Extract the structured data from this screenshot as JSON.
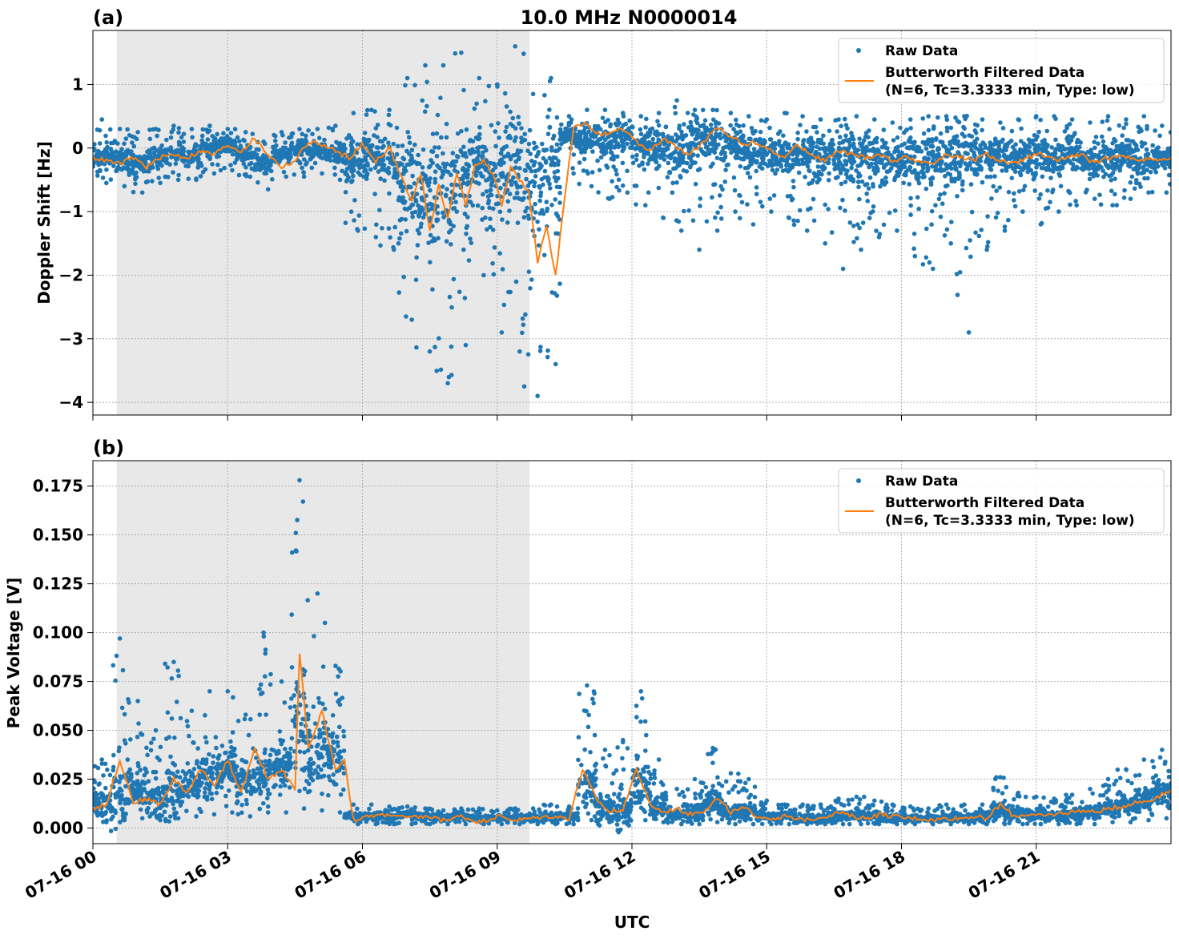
{
  "figure": {
    "title": "10.0 MHz N0000014",
    "xlabel": "UTC"
  },
  "colors": {
    "raw": "#1f77b4",
    "filtered": "#ff7f0e",
    "shade": "#e8e8e8",
    "grid": "#b0b0b0"
  },
  "chart_data": [
    {
      "type": "scatter",
      "panel_label": "(a)",
      "title": "10.0 MHz N0000014",
      "ylabel": "Doppler Shift [Hz]",
      "xlabel": "",
      "x_unit": "hours since 07-16 00 UTC",
      "xlim": [
        0,
        24
      ],
      "ylim": [
        -4.2,
        1.85
      ],
      "xticks": [
        0,
        3,
        6,
        9,
        12,
        15,
        18,
        21
      ],
      "yticks": [
        1,
        0,
        -1,
        -2,
        -3,
        -4
      ],
      "ytick_labels": [
        "1",
        "0",
        "−1",
        "−2",
        "−3",
        "−4"
      ],
      "grid": true,
      "legend_position": "top-right",
      "shaded_region": [
        0.53,
        9.72
      ],
      "series": [
        {
          "name": "Raw Data",
          "style": "dots",
          "x": [
            0.2,
            0.6,
            1.0,
            1.4,
            1.8,
            2.2,
            2.6,
            3.0,
            3.4,
            3.8,
            4.2,
            4.6,
            5.0,
            5.4,
            5.8,
            6.2,
            6.6,
            7.0,
            7.4,
            7.8,
            8.2,
            8.6,
            9.0,
            9.4,
            9.8,
            10.2,
            10.6,
            11.0,
            11.4,
            11.8,
            12.2,
            12.6,
            13.0,
            13.4,
            13.8,
            14.2,
            14.6,
            15.0,
            15.4,
            15.8,
            16.2,
            16.6,
            17.0,
            17.4,
            17.8,
            18.2,
            18.6,
            19.0,
            19.4,
            19.8,
            20.2,
            20.6,
            21.0,
            21.4,
            21.8,
            22.2,
            22.6,
            23.0,
            23.4,
            23.8
          ],
          "y_center": [
            -0.15,
            -0.2,
            -0.25,
            -0.15,
            -0.1,
            -0.15,
            0.0,
            0.05,
            -0.1,
            -0.25,
            -0.1,
            0.0,
            -0.05,
            -0.1,
            -0.2,
            -0.1,
            -0.3,
            -0.5,
            -0.8,
            -0.6,
            -0.5,
            -0.2,
            -0.4,
            -0.3,
            -0.6,
            -0.3,
            0.2,
            0.15,
            0.1,
            0.2,
            0.05,
            0.0,
            -0.05,
            0.05,
            0.1,
            0.05,
            -0.05,
            -0.1,
            -0.1,
            -0.1,
            -0.15,
            -0.1,
            -0.15,
            -0.1,
            -0.2,
            -0.15,
            -0.2,
            -0.15,
            -0.1,
            -0.1,
            -0.15,
            -0.15,
            -0.1,
            -0.15,
            -0.1,
            -0.2,
            -0.15,
            -0.1,
            -0.2,
            -0.15
          ],
          "y_min": [
            -0.55,
            -0.6,
            -0.7,
            -0.55,
            -0.5,
            -0.5,
            -0.4,
            -0.35,
            -0.45,
            -0.65,
            -0.45,
            -0.45,
            -0.4,
            -0.5,
            -1.3,
            -1.4,
            -1.6,
            -2.7,
            -3.2,
            -3.7,
            -3.1,
            -2.0,
            -2.9,
            -3.2,
            -3.9,
            -3.4,
            -0.4,
            -0.6,
            -0.8,
            -0.7,
            -0.9,
            -1.1,
            -1.3,
            -1.6,
            -1.3,
            -1.0,
            -1.2,
            -1.0,
            -1.1,
            -1.3,
            -1.5,
            -1.9,
            -1.6,
            -1.4,
            -1.3,
            -1.7,
            -1.9,
            -1.5,
            -2.9,
            -1.6,
            -1.3,
            -1.0,
            -1.2,
            -1.0,
            -0.9,
            -0.8,
            -0.9,
            -0.8,
            -0.7,
            -0.7
          ],
          "y_max": [
            0.45,
            0.3,
            0.25,
            0.3,
            0.35,
            0.3,
            0.35,
            0.3,
            0.25,
            0.1,
            0.25,
            0.3,
            0.3,
            0.35,
            0.55,
            0.6,
            0.6,
            1.1,
            1.3,
            1.3,
            1.5,
            1.1,
            1.0,
            1.6,
            0.85,
            1.1,
            0.5,
            0.6,
            0.6,
            0.55,
            0.5,
            0.55,
            0.75,
            0.6,
            0.6,
            0.55,
            0.5,
            0.45,
            0.55,
            0.5,
            0.45,
            0.45,
            0.5,
            0.45,
            0.4,
            0.45,
            0.5,
            0.5,
            0.5,
            0.45,
            0.4,
            0.45,
            0.5,
            0.5,
            0.45,
            0.4,
            0.5,
            0.45,
            0.5,
            0.35
          ]
        },
        {
          "name": "Butterworth Filtered Data\n(N=6, Tc=3.3333 min, Type: low)",
          "style": "line",
          "x": [
            0.0,
            0.3,
            0.6,
            0.9,
            1.2,
            1.5,
            1.8,
            2.1,
            2.4,
            2.7,
            3.0,
            3.3,
            3.6,
            3.9,
            4.2,
            4.5,
            4.8,
            5.1,
            5.4,
            5.7,
            6.0,
            6.3,
            6.6,
            6.9,
            7.1,
            7.3,
            7.5,
            7.7,
            7.9,
            8.1,
            8.3,
            8.5,
            8.7,
            8.9,
            9.1,
            9.3,
            9.5,
            9.7,
            9.9,
            10.1,
            10.3,
            10.5,
            10.7,
            10.9,
            11.2,
            11.5,
            11.8,
            12.1,
            12.4,
            12.7,
            13.0,
            13.3,
            13.6,
            13.9,
            14.2,
            14.5,
            14.8,
            15.1,
            15.4,
            15.7,
            16.0,
            16.3,
            16.6,
            16.9,
            17.2,
            17.5,
            17.8,
            18.1,
            18.4,
            18.7,
            19.0,
            19.3,
            19.6,
            19.9,
            20.2,
            20.5,
            20.8,
            21.1,
            21.4,
            21.7,
            22.0,
            22.3,
            22.6,
            22.9,
            23.2,
            23.5,
            23.8,
            24.0
          ],
          "y": [
            -0.15,
            -0.2,
            -0.25,
            -0.15,
            -0.3,
            -0.15,
            -0.1,
            -0.15,
            -0.05,
            -0.1,
            0.05,
            -0.05,
            0.15,
            -0.1,
            -0.3,
            -0.2,
            0.1,
            0.05,
            -0.05,
            -0.15,
            0.05,
            -0.2,
            0.0,
            -0.5,
            -0.85,
            -0.4,
            -1.3,
            -0.6,
            -1.1,
            -0.4,
            -0.9,
            -0.3,
            -0.2,
            -0.4,
            -0.9,
            -0.3,
            -0.5,
            -0.7,
            -1.8,
            -1.2,
            -2.0,
            -0.8,
            0.3,
            0.4,
            0.25,
            0.2,
            0.3,
            0.1,
            -0.05,
            0.15,
            0.0,
            -0.1,
            0.1,
            0.3,
            0.2,
            0.05,
            0.1,
            -0.05,
            -0.15,
            0.05,
            -0.1,
            -0.2,
            -0.05,
            -0.1,
            -0.15,
            -0.1,
            -0.2,
            -0.15,
            -0.2,
            -0.25,
            -0.1,
            -0.15,
            -0.2,
            -0.1,
            -0.2,
            -0.25,
            -0.15,
            -0.1,
            -0.2,
            -0.15,
            -0.1,
            -0.25,
            -0.15,
            -0.1,
            -0.2,
            -0.15,
            -0.2,
            -0.15
          ]
        }
      ]
    },
    {
      "type": "scatter",
      "panel_label": "(b)",
      "title": "",
      "ylabel": "Peak Voltage [V]",
      "xlabel": "UTC",
      "x_unit": "hours since 07-16 00 UTC",
      "xlim": [
        0,
        24
      ],
      "ylim": [
        -0.008,
        0.188
      ],
      "xticks": [
        0,
        3,
        6,
        9,
        12,
        15,
        18,
        21
      ],
      "xtick_labels": [
        "07-16 00",
        "07-16 03",
        "07-16 06",
        "07-16 09",
        "07-16 12",
        "07-16 15",
        "07-16 18",
        "07-16 21"
      ],
      "yticks": [
        0.0,
        0.025,
        0.05,
        0.075,
        0.1,
        0.125,
        0.15,
        0.175
      ],
      "ytick_labels": [
        "0.000",
        "0.025",
        "0.050",
        "0.075",
        "0.100",
        "0.125",
        "0.150",
        "0.175"
      ],
      "grid": true,
      "legend_position": "top-right",
      "shaded_region": [
        0.53,
        9.72
      ],
      "series": [
        {
          "name": "Raw Data",
          "style": "dots",
          "x": [
            0.2,
            0.6,
            1.0,
            1.4,
            1.8,
            2.2,
            2.6,
            3.0,
            3.4,
            3.8,
            4.2,
            4.6,
            5.0,
            5.4,
            5.8,
            6.2,
            6.6,
            7.0,
            7.4,
            7.8,
            8.2,
            8.6,
            9.0,
            9.4,
            9.8,
            10.2,
            10.6,
            11.0,
            11.4,
            11.8,
            12.2,
            12.6,
            13.0,
            13.4,
            13.8,
            14.2,
            14.6,
            15.0,
            15.4,
            15.8,
            16.2,
            16.6,
            17.0,
            17.4,
            17.8,
            18.2,
            18.6,
            19.0,
            19.4,
            19.8,
            20.2,
            20.6,
            21.0,
            21.4,
            21.8,
            22.2,
            22.6,
            23.0,
            23.4,
            23.8
          ],
          "y_center": [
            0.012,
            0.015,
            0.02,
            0.014,
            0.018,
            0.022,
            0.028,
            0.03,
            0.025,
            0.03,
            0.032,
            0.05,
            0.04,
            0.035,
            0.006,
            0.006,
            0.006,
            0.007,
            0.006,
            0.005,
            0.006,
            0.005,
            0.005,
            0.005,
            0.005,
            0.006,
            0.006,
            0.02,
            0.01,
            0.008,
            0.02,
            0.01,
            0.007,
            0.008,
            0.012,
            0.008,
            0.008,
            0.006,
            0.006,
            0.005,
            0.005,
            0.006,
            0.007,
            0.006,
            0.005,
            0.005,
            0.005,
            0.005,
            0.005,
            0.006,
            0.009,
            0.007,
            0.007,
            0.006,
            0.007,
            0.008,
            0.01,
            0.012,
            0.014,
            0.018
          ],
          "y_min": [
            0.003,
            0.004,
            0.005,
            0.004,
            0.005,
            0.006,
            0.007,
            0.008,
            0.006,
            0.008,
            0.008,
            0.01,
            0.009,
            0.008,
            0.002,
            0.002,
            0.002,
            0.002,
            0.002,
            0.002,
            0.002,
            0.002,
            0.002,
            0.002,
            0.002,
            0.002,
            0.002,
            0.004,
            0.003,
            0.002,
            0.004,
            0.003,
            0.002,
            0.002,
            0.003,
            0.002,
            0.002,
            0.002,
            0.002,
            0.002,
            0.002,
            0.002,
            0.002,
            0.002,
            0.002,
            0.002,
            0.002,
            0.002,
            0.002,
            0.002,
            0.002,
            0.002,
            0.002,
            0.002,
            0.002,
            0.002,
            0.003,
            0.003,
            0.004,
            0.005
          ],
          "y_max": [
            0.035,
            0.097,
            0.065,
            0.05,
            0.085,
            0.06,
            0.07,
            0.07,
            0.058,
            0.1,
            0.075,
            0.178,
            0.12,
            0.083,
            0.012,
            0.012,
            0.011,
            0.011,
            0.01,
            0.009,
            0.01,
            0.01,
            0.009,
            0.01,
            0.01,
            0.012,
            0.011,
            0.073,
            0.04,
            0.045,
            0.07,
            0.035,
            0.02,
            0.025,
            0.041,
            0.028,
            0.025,
            0.014,
            0.012,
            0.012,
            0.012,
            0.015,
            0.016,
            0.014,
            0.012,
            0.011,
            0.01,
            0.012,
            0.012,
            0.012,
            0.026,
            0.018,
            0.016,
            0.015,
            0.017,
            0.02,
            0.025,
            0.03,
            0.035,
            0.04
          ]
        },
        {
          "name": "Butterworth Filtered Data\n(N=6, Tc=3.3333 min, Type: low)",
          "style": "line",
          "x": [
            0.0,
            0.3,
            0.6,
            0.9,
            1.2,
            1.5,
            1.8,
            2.1,
            2.4,
            2.7,
            3.0,
            3.3,
            3.6,
            3.9,
            4.2,
            4.5,
            4.6,
            4.8,
            5.1,
            5.4,
            5.6,
            5.8,
            6.2,
            6.6,
            7.0,
            7.4,
            7.8,
            8.2,
            8.6,
            9.0,
            9.4,
            9.8,
            10.2,
            10.6,
            10.9,
            11.2,
            11.5,
            11.8,
            12.1,
            12.4,
            12.7,
            13.0,
            13.3,
            13.6,
            13.9,
            14.2,
            14.5,
            14.8,
            15.1,
            15.4,
            15.7,
            16.0,
            16.3,
            16.6,
            16.9,
            17.2,
            17.5,
            17.8,
            18.1,
            18.4,
            18.7,
            19.0,
            19.3,
            19.6,
            19.9,
            20.2,
            20.5,
            20.8,
            21.1,
            21.4,
            21.7,
            22.0,
            22.3,
            22.6,
            22.9,
            23.2,
            23.5,
            23.8,
            24.0
          ],
          "y": [
            0.01,
            0.012,
            0.035,
            0.013,
            0.015,
            0.012,
            0.025,
            0.018,
            0.03,
            0.022,
            0.035,
            0.018,
            0.04,
            0.025,
            0.03,
            0.02,
            0.09,
            0.04,
            0.06,
            0.03,
            0.035,
            0.004,
            0.006,
            0.007,
            0.005,
            0.006,
            0.004,
            0.006,
            0.003,
            0.006,
            0.004,
            0.005,
            0.006,
            0.005,
            0.03,
            0.015,
            0.008,
            0.01,
            0.03,
            0.012,
            0.008,
            0.01,
            0.007,
            0.009,
            0.015,
            0.008,
            0.01,
            0.006,
            0.005,
            0.006,
            0.004,
            0.005,
            0.006,
            0.008,
            0.006,
            0.005,
            0.007,
            0.006,
            0.005,
            0.005,
            0.004,
            0.005,
            0.005,
            0.006,
            0.005,
            0.012,
            0.006,
            0.007,
            0.006,
            0.007,
            0.008,
            0.009,
            0.008,
            0.01,
            0.011,
            0.013,
            0.014,
            0.017,
            0.019
          ]
        }
      ]
    }
  ],
  "legend": {
    "raw_label": "Raw Data",
    "filtered_line1": "Butterworth Filtered Data",
    "filtered_line2": "(N=6, Tc=3.3333 min, Type: low)"
  }
}
